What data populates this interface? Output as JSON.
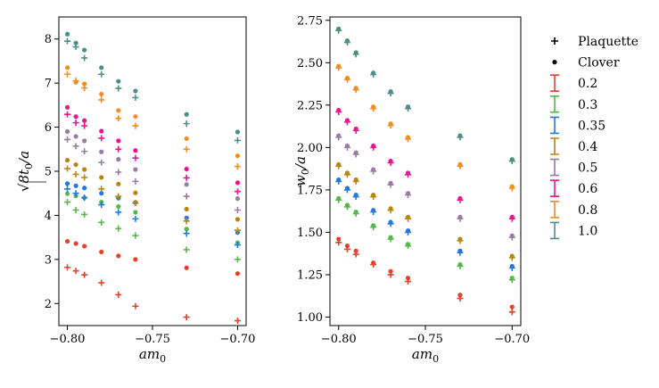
{
  "chart_data": [
    {
      "type": "scatter",
      "panel": "left",
      "xlabel": "am_0",
      "ylabel": "√(8t_0)/a",
      "xlim": [
        -0.805,
        -0.695
      ],
      "ylim": [
        1.5,
        8.5
      ],
      "xticks": [
        -0.8,
        -0.75,
        -0.7
      ],
      "xtick_labels": [
        "−0.80",
        "−0.75",
        "−0.70"
      ],
      "yticks": [
        2,
        3,
        4,
        5,
        6,
        7,
        8
      ],
      "ytick_labels": [
        "2",
        "3",
        "4",
        "5",
        "6",
        "7",
        "8"
      ],
      "series": [
        {
          "beta": "0.2",
          "color": "#e8402a",
          "plaquette": {
            "x": [
              -0.8,
              -0.795,
              -0.79,
              -0.78,
              -0.77,
              -0.76,
              -0.73,
              -0.7
            ],
            "y": [
              2.82,
              2.74,
              2.65,
              2.47,
              2.2,
              1.94,
              1.69,
              1.61
            ]
          },
          "clover": {
            "x": [
              -0.8,
              -0.795,
              -0.79,
              -0.78,
              -0.77,
              -0.76,
              -0.73,
              -0.7
            ],
            "y": [
              3.41,
              3.36,
              3.3,
              3.17,
              3.08,
              3.0,
              2.81,
              2.68
            ]
          }
        },
        {
          "beta": "0.3",
          "color": "#55b74a",
          "plaquette": {
            "x": [
              -0.8,
              -0.795,
              -0.79,
              -0.78,
              -0.77,
              -0.76,
              -0.73,
              -0.7
            ],
            "y": [
              4.3,
              4.12,
              4.02,
              3.84,
              3.7,
              3.54,
              3.22,
              3.0
            ]
          },
          "clover": {
            "x": [
              -0.8,
              -0.795,
              -0.79,
              -0.78,
              -0.77,
              -0.76,
              -0.73,
              -0.7
            ],
            "y": [
              4.49,
              4.44,
              4.4,
              4.3,
              4.2,
              4.07,
              3.69,
              3.38
            ]
          }
        },
        {
          "beta": "0.35",
          "color": "#1f78e6",
          "plaquette": {
            "x": [
              -0.8,
              -0.795,
              -0.79,
              -0.78,
              -0.77,
              -0.76,
              -0.73,
              -0.7
            ],
            "y": [
              4.6,
              4.5,
              4.4,
              4.24,
              4.07,
              3.92,
              3.59,
              3.33
            ]
          },
          "clover": {
            "x": [
              -0.8,
              -0.795,
              -0.79,
              -0.78,
              -0.77,
              -0.76,
              -0.73,
              -0.7
            ],
            "y": [
              4.72,
              4.67,
              4.62,
              4.5,
              4.39,
              4.29,
              3.94,
              3.61
            ]
          }
        },
        {
          "beta": "0.4",
          "color": "#b8860b",
          "plaquette": {
            "x": [
              -0.8,
              -0.795,
              -0.79,
              -0.78,
              -0.77,
              -0.76,
              -0.73,
              -0.7
            ],
            "y": [
              5.06,
              4.93,
              4.86,
              4.6,
              4.43,
              4.28,
              3.87,
              3.66
            ]
          },
          "clover": {
            "x": [
              -0.8,
              -0.795,
              -0.79,
              -0.78,
              -0.77,
              -0.76,
              -0.73,
              -0.7
            ],
            "y": [
              5.25,
              5.15,
              5.04,
              4.86,
              4.71,
              4.51,
              4.14,
              3.91
            ]
          }
        },
        {
          "beta": "0.5",
          "color": "#9b7aa8",
          "plaquette": {
            "x": [
              -0.8,
              -0.795,
              -0.79,
              -0.78,
              -0.77,
              -0.76,
              -0.73,
              -0.7
            ],
            "y": [
              5.72,
              5.57,
              5.45,
              5.2,
              4.98,
              4.77,
              4.43,
              4.12
            ]
          },
          "clover": {
            "x": [
              -0.8,
              -0.795,
              -0.79,
              -0.78,
              -0.77,
              -0.76,
              -0.73,
              -0.7
            ],
            "y": [
              5.9,
              5.79,
              5.69,
              5.44,
              5.27,
              5.04,
              4.7,
              4.38
            ]
          }
        },
        {
          "beta": "0.6",
          "color": "#f0138f",
          "plaquette": {
            "x": [
              -0.8,
              -0.795,
              -0.79,
              -0.78,
              -0.77,
              -0.76,
              -0.73,
              -0.7
            ],
            "y": [
              6.29,
              6.1,
              6.03,
              5.75,
              5.5,
              5.3,
              4.85,
              4.54
            ]
          },
          "clover": {
            "x": [
              -0.8,
              -0.795,
              -0.79,
              -0.78,
              -0.77,
              -0.76,
              -0.73,
              -0.7
            ],
            "y": [
              6.45,
              6.24,
              6.15,
              5.91,
              5.69,
              5.47,
              5.05,
              4.74
            ]
          }
        },
        {
          "beta": "0.8",
          "color": "#f68c1f",
          "plaquette": {
            "x": [
              -0.8,
              -0.795,
              -0.79,
              -0.78,
              -0.77,
              -0.76,
              -0.73,
              -0.7
            ],
            "y": [
              7.2,
              7.05,
              6.89,
              6.62,
              6.2,
              6.03,
              5.5,
              5.11
            ]
          },
          "clover": {
            "x": [
              -0.8,
              -0.795,
              -0.79,
              -0.78,
              -0.77,
              -0.76,
              -0.73,
              -0.7
            ],
            "y": [
              7.35,
              7.02,
              6.98,
              6.75,
              6.38,
              6.24,
              5.74,
              5.35
            ]
          }
        },
        {
          "beta": "1.0",
          "color": "#4a8f86",
          "plaquette": {
            "x": [
              -0.8,
              -0.795,
              -0.79,
              -0.78,
              -0.77,
              -0.76,
              -0.73,
              -0.7
            ],
            "y": [
              7.95,
              7.82,
              7.57,
              7.2,
              6.88,
              6.67,
              6.08,
              5.7
            ]
          },
          "clover": {
            "x": [
              -0.8,
              -0.795,
              -0.79,
              -0.78,
              -0.77,
              -0.76,
              -0.73,
              -0.7
            ],
            "y": [
              8.11,
              7.91,
              7.75,
              7.35,
              7.04,
              6.82,
              6.29,
              5.89
            ]
          }
        }
      ]
    },
    {
      "type": "scatter",
      "panel": "right",
      "xlabel": "am_0",
      "ylabel": "w_0/a",
      "xlim": [
        -0.805,
        -0.695
      ],
      "ylim": [
        0.95,
        2.77
      ],
      "xticks": [
        -0.8,
        -0.75,
        -0.7
      ],
      "xtick_labels": [
        "−0.80",
        "−0.75",
        "−0.70"
      ],
      "yticks": [
        1.0,
        1.25,
        1.5,
        1.75,
        2.0,
        2.25,
        2.5,
        2.75
      ],
      "ytick_labels": [
        "1.00",
        "1.25",
        "1.50",
        "1.75",
        "2.00",
        "2.25",
        "2.50",
        "2.75"
      ],
      "series": [
        {
          "beta": "0.2",
          "color": "#e8402a",
          "plaquette": {
            "x": [
              -0.8,
              -0.795,
              -0.79,
              -0.78,
              -0.77,
              -0.76,
              -0.73,
              -0.7
            ],
            "y": [
              1.44,
              1.4,
              1.37,
              1.31,
              1.25,
              1.21,
              1.11,
              1.03
            ]
          },
          "clover": {
            "x": [
              -0.8,
              -0.795,
              -0.79,
              -0.78,
              -0.77,
              -0.76,
              -0.73,
              -0.7
            ],
            "y": [
              1.46,
              1.42,
              1.39,
              1.32,
              1.27,
              1.23,
              1.13,
              1.06
            ]
          }
        },
        {
          "beta": "0.3",
          "color": "#55b74a",
          "plaquette": {
            "x": [
              -0.8,
              -0.795,
              -0.79,
              -0.78,
              -0.77,
              -0.76,
              -0.73,
              -0.7
            ],
            "y": [
              1.69,
              1.65,
              1.61,
              1.53,
              1.46,
              1.42,
              1.3,
              1.22
            ]
          },
          "clover": {
            "x": [
              -0.8,
              -0.795,
              -0.79,
              -0.78,
              -0.77,
              -0.76,
              -0.73,
              -0.7
            ],
            "y": [
              1.7,
              1.66,
              1.62,
              1.54,
              1.47,
              1.43,
              1.31,
              1.23
            ]
          }
        },
        {
          "beta": "0.35",
          "color": "#1f78e6",
          "plaquette": {
            "x": [
              -0.8,
              -0.795,
              -0.79,
              -0.78,
              -0.77,
              -0.76,
              -0.73,
              -0.7
            ],
            "y": [
              1.8,
              1.75,
              1.71,
              1.62,
              1.55,
              1.5,
              1.38,
              1.29
            ]
          },
          "clover": {
            "x": [
              -0.8,
              -0.795,
              -0.79,
              -0.78,
              -0.77,
              -0.76,
              -0.73,
              -0.7
            ],
            "y": [
              1.81,
              1.76,
              1.72,
              1.63,
              1.56,
              1.51,
              1.39,
              1.3
            ]
          }
        },
        {
          "beta": "0.4",
          "color": "#b8860b",
          "plaquette": {
            "x": [
              -0.8,
              -0.795,
              -0.79,
              -0.78,
              -0.77,
              -0.76,
              -0.73,
              -0.7
            ],
            "y": [
              1.89,
              1.84,
              1.8,
              1.71,
              1.63,
              1.58,
              1.45,
              1.35
            ]
          },
          "clover": {
            "x": [
              -0.8,
              -0.795,
              -0.79,
              -0.78,
              -0.77,
              -0.76,
              -0.73,
              -0.7
            ],
            "y": [
              1.9,
              1.85,
              1.81,
              1.72,
              1.64,
              1.59,
              1.46,
              1.36
            ]
          }
        },
        {
          "beta": "0.5",
          "color": "#9b7aa8",
          "plaquette": {
            "x": [
              -0.8,
              -0.795,
              -0.79,
              -0.78,
              -0.77,
              -0.76,
              -0.73,
              -0.7
            ],
            "y": [
              2.06,
              2.0,
              1.96,
              1.86,
              1.78,
              1.72,
              1.58,
              1.47
            ]
          },
          "clover": {
            "x": [
              -0.8,
              -0.795,
              -0.79,
              -0.78,
              -0.77,
              -0.76,
              -0.73,
              -0.7
            ],
            "y": [
              2.07,
              2.01,
              1.97,
              1.87,
              1.79,
              1.73,
              1.59,
              1.48
            ]
          }
        },
        {
          "beta": "0.6",
          "color": "#f0138f",
          "plaquette": {
            "x": [
              -0.8,
              -0.795,
              -0.79,
              -0.78,
              -0.77,
              -0.76,
              -0.73,
              -0.7
            ],
            "y": [
              2.21,
              2.15,
              2.1,
              2.0,
              1.91,
              1.84,
              1.69,
              1.58
            ]
          },
          "clover": {
            "x": [
              -0.8,
              -0.795,
              -0.79,
              -0.78,
              -0.77,
              -0.76,
              -0.73,
              -0.7
            ],
            "y": [
              2.22,
              2.16,
              2.11,
              2.01,
              1.92,
              1.85,
              1.7,
              1.59
            ]
          }
        },
        {
          "beta": "0.8",
          "color": "#f68c1f",
          "plaquette": {
            "x": [
              -0.8,
              -0.795,
              -0.79,
              -0.78,
              -0.77,
              -0.76,
              -0.73,
              -0.7
            ],
            "y": [
              2.47,
              2.4,
              2.34,
              2.23,
              2.13,
              2.05,
              1.89,
              1.76
            ]
          },
          "clover": {
            "x": [
              -0.8,
              -0.795,
              -0.79,
              -0.78,
              -0.77,
              -0.76,
              -0.73,
              -0.7
            ],
            "y": [
              2.48,
              2.41,
              2.35,
              2.24,
              2.14,
              2.06,
              1.9,
              1.77
            ]
          }
        },
        {
          "beta": "1.0",
          "color": "#4a8f86",
          "plaquette": {
            "x": [
              -0.8,
              -0.795,
              -0.79,
              -0.78,
              -0.77,
              -0.76,
              -0.73,
              -0.7
            ],
            "y": [
              2.69,
              2.62,
              2.55,
              2.43,
              2.32,
              2.23,
              2.06,
              1.92
            ]
          },
          "clover": {
            "x": [
              -0.8,
              -0.795,
              -0.79,
              -0.78,
              -0.77,
              -0.76,
              -0.73,
              -0.7
            ],
            "y": [
              2.7,
              2.63,
              2.56,
              2.44,
              2.33,
              2.24,
              2.07,
              1.93
            ]
          }
        }
      ]
    }
  ],
  "legend": {
    "placement": "right",
    "markers": [
      {
        "label": "Plaquette",
        "symbol": "+"
      },
      {
        "label": "Clover",
        "symbol": "•"
      }
    ],
    "betas": [
      {
        "label": "0.2",
        "color": "#e8402a"
      },
      {
        "label": "0.3",
        "color": "#55b74a"
      },
      {
        "label": "0.35",
        "color": "#1f78e6"
      },
      {
        "label": "0.4",
        "color": "#b8860b"
      },
      {
        "label": "0.5",
        "color": "#9b7aa8"
      },
      {
        "label": "0.6",
        "color": "#f0138f"
      },
      {
        "label": "0.8",
        "color": "#f68c1f"
      },
      {
        "label": "1.0",
        "color": "#4a8f86"
      }
    ]
  }
}
